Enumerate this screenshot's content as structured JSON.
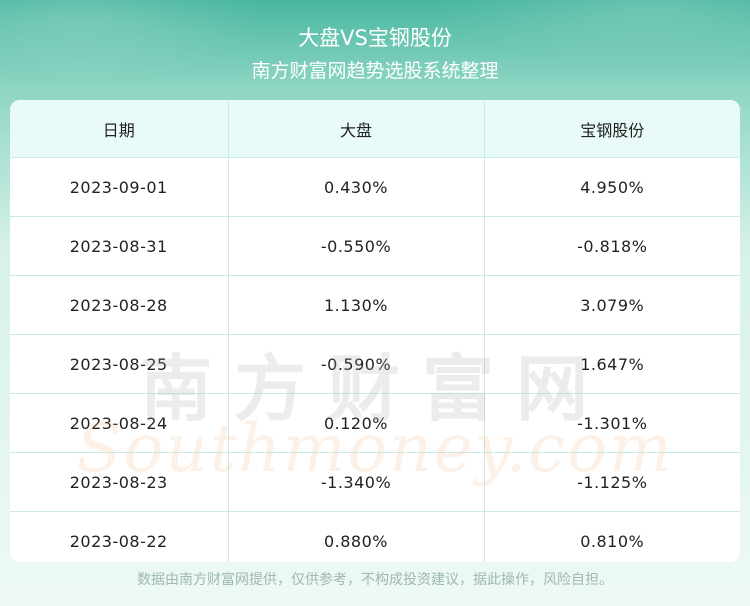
{
  "header": {
    "title": "大盘VS宝钢股份",
    "subtitle": "南方财富网趋势选股系统整理"
  },
  "table": {
    "columns": [
      "日期",
      "大盘",
      "宝钢股份"
    ],
    "rows": [
      [
        "2023-09-01",
        "0.430%",
        "4.950%"
      ],
      [
        "2023-08-31",
        "-0.550%",
        "-0.818%"
      ],
      [
        "2023-08-28",
        "1.130%",
        "3.079%"
      ],
      [
        "2023-08-25",
        "-0.590%",
        "1.647%"
      ],
      [
        "2023-08-24",
        "0.120%",
        "-1.301%"
      ],
      [
        "2023-08-23",
        "-1.340%",
        "-1.125%"
      ],
      [
        "2023-08-22",
        "0.880%",
        "0.810%"
      ]
    ]
  },
  "watermark": {
    "cn": "南方财富网",
    "en": "Southmoney.com"
  },
  "footer": {
    "disclaimer": "数据由南方财富网提供，仅供参考，不构成投资建议，据此操作，风险自担。"
  },
  "colors": {
    "header_green": "#49b7a0",
    "table_header_bg": "#e9fbf8",
    "grid_line": "#c7ece4"
  }
}
